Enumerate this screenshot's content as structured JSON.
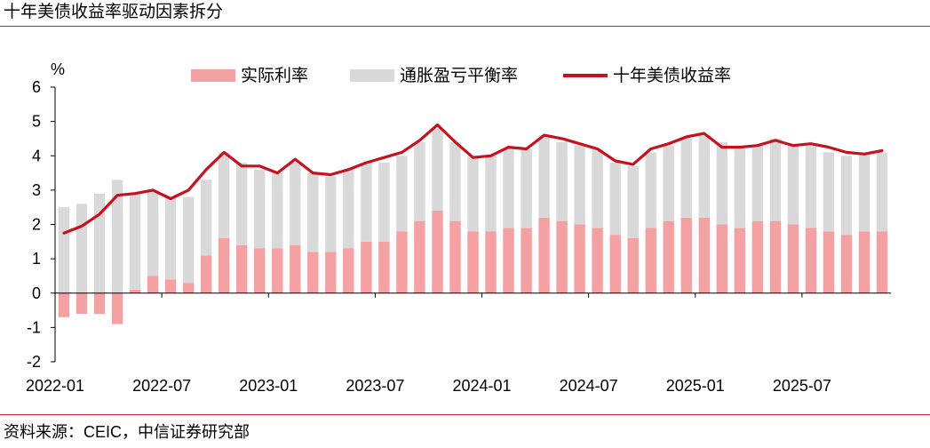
{
  "header": {
    "title": "十年美债收益率驱动因素拆分"
  },
  "footer": {
    "source": "资料来源：CEIC，中信证券研究部"
  },
  "chart_data": {
    "type": "bar",
    "title": "十年美债收益率驱动因素拆分",
    "ylabel": "%",
    "xlabel": "",
    "ylim": [
      -2,
      6
    ],
    "yticks": [
      -2,
      -1,
      0,
      1,
      2,
      3,
      4,
      5,
      6
    ],
    "xticks": [
      "2022-01",
      "2022-07",
      "2023-01",
      "2023-07",
      "2024-01",
      "2024-07",
      "2025-01",
      "2025-07"
    ],
    "legend_position": "top",
    "grid": false,
    "stacked": true,
    "x": [
      "2022-01",
      "2022-02",
      "2022-03",
      "2022-04",
      "2022-05",
      "2022-06",
      "2022-07",
      "2022-08",
      "2022-09",
      "2022-10",
      "2022-11",
      "2022-12",
      "2023-01",
      "2023-02",
      "2023-03",
      "2023-04",
      "2023-05",
      "2023-06",
      "2023-07",
      "2023-08",
      "2023-09",
      "2023-10",
      "2023-11",
      "2023-12",
      "2024-01",
      "2024-02",
      "2024-03",
      "2024-04",
      "2024-05",
      "2024-06",
      "2024-07",
      "2024-08",
      "2024-09",
      "2024-10",
      "2024-11",
      "2024-12",
      "2025-01",
      "2025-02",
      "2025-03",
      "2025-04",
      "2025-05",
      "2025-06",
      "2025-07",
      "2025-08",
      "2025-09",
      "2025-10",
      "2025-11"
    ],
    "series": [
      {
        "name": "实际利率",
        "kind": "bar",
        "color": "#f4a1a3",
        "values": [
          -0.7,
          -0.6,
          -0.6,
          -0.9,
          0.1,
          0.5,
          0.4,
          0.3,
          1.1,
          1.6,
          1.4,
          1.3,
          1.3,
          1.4,
          1.2,
          1.2,
          1.3,
          1.5,
          1.5,
          1.8,
          2.1,
          2.4,
          2.1,
          1.8,
          1.8,
          1.9,
          1.9,
          2.2,
          2.1,
          2.0,
          1.9,
          1.7,
          1.6,
          1.9,
          2.1,
          2.2,
          2.2,
          2.0,
          1.9,
          2.1,
          2.1,
          2.0,
          1.9,
          1.8,
          1.7,
          1.8,
          1.8
        ]
      },
      {
        "name": "通胀盈亏平衡率",
        "kind": "bar",
        "color": "#d9d9d9",
        "values": [
          2.5,
          2.6,
          2.9,
          3.3,
          2.8,
          2.5,
          2.4,
          2.5,
          2.2,
          2.5,
          2.4,
          2.3,
          2.2,
          2.4,
          2.3,
          2.2,
          2.3,
          2.3,
          2.3,
          2.2,
          2.3,
          2.4,
          2.3,
          2.2,
          2.2,
          2.3,
          2.3,
          2.4,
          2.3,
          2.3,
          2.3,
          2.1,
          2.1,
          2.2,
          2.2,
          2.3,
          2.4,
          2.4,
          2.3,
          2.2,
          2.4,
          2.3,
          2.4,
          2.3,
          2.3,
          2.3,
          2.3
        ]
      },
      {
        "name": "十年美债收益率",
        "kind": "line",
        "color": "#c8101e",
        "values": [
          1.75,
          1.95,
          2.3,
          2.85,
          2.9,
          3.0,
          2.75,
          3.0,
          3.6,
          4.1,
          3.7,
          3.7,
          3.5,
          3.9,
          3.5,
          3.45,
          3.6,
          3.8,
          3.95,
          4.1,
          4.45,
          4.9,
          4.4,
          3.95,
          4.0,
          4.25,
          4.2,
          4.6,
          4.5,
          4.35,
          4.2,
          3.85,
          3.75,
          4.2,
          4.35,
          4.55,
          4.65,
          4.25,
          4.25,
          4.3,
          4.45,
          4.3,
          4.35,
          4.25,
          4.1,
          4.05,
          4.15
        ]
      }
    ]
  }
}
